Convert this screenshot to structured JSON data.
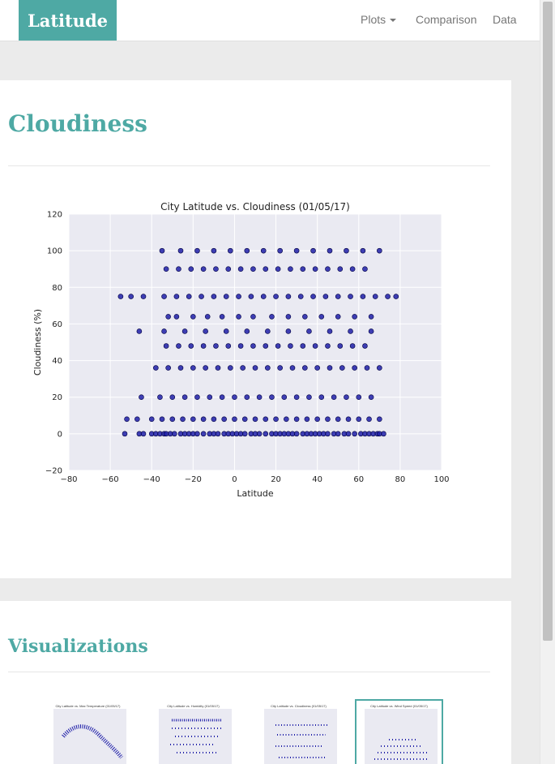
{
  "navbar": {
    "brand": "Latitude",
    "links": {
      "plots": "Plots",
      "comparison": "Comparison",
      "data": "Data"
    }
  },
  "cloudiness_section": {
    "heading": "Cloudiness"
  },
  "chart_data": {
    "type": "scatter",
    "title": "City Latitude vs. Cloudiness (01/05/17)",
    "xlabel": "Latitude",
    "ylabel": "Cloudiness (%)",
    "xlim": [
      -80,
      100
    ],
    "ylim": [
      -20,
      120
    ],
    "xticks": [
      -80,
      -60,
      -40,
      -20,
      0,
      20,
      40,
      60,
      80,
      100
    ],
    "yticks": [
      -20,
      0,
      20,
      40,
      60,
      80,
      100,
      120
    ],
    "grid": true,
    "marker_color": "#1f1fa8",
    "background_color": "#eaeaf2",
    "x": [
      -53,
      -46,
      -44,
      -40,
      -38,
      -36,
      -34,
      -33,
      -31,
      -29,
      -26,
      -24,
      -22,
      -20,
      -18,
      -15,
      -12,
      -10,
      -8,
      -5,
      -3,
      -1,
      1,
      3,
      5,
      8,
      10,
      12,
      15,
      18,
      20,
      22,
      24,
      26,
      28,
      30,
      33,
      35,
      37,
      39,
      41,
      43,
      45,
      48,
      50,
      53,
      55,
      58,
      61,
      63,
      65,
      67,
      69,
      70,
      72,
      -52,
      -47,
      -40,
      -35,
      -30,
      -25,
      -20,
      -15,
      -10,
      -5,
      0,
      5,
      10,
      15,
      20,
      25,
      30,
      35,
      40,
      45,
      50,
      55,
      60,
      65,
      70,
      -45,
      -36,
      -30,
      -24,
      -18,
      -12,
      -6,
      0,
      6,
      12,
      18,
      24,
      30,
      36,
      42,
      48,
      54,
      60,
      66,
      -38,
      -32,
      -26,
      -20,
      -14,
      -8,
      -2,
      4,
      10,
      16,
      22,
      28,
      34,
      40,
      46,
      52,
      58,
      64,
      70,
      -33,
      -27,
      -21,
      -15,
      -9,
      -3,
      3,
      9,
      15,
      21,
      27,
      33,
      39,
      45,
      51,
      57,
      63,
      -55,
      -50,
      -44,
      -34,
      -28,
      -22,
      -16,
      -10,
      -4,
      2,
      8,
      14,
      20,
      26,
      32,
      38,
      44,
      50,
      56,
      62,
      68,
      74,
      78,
      -33,
      -27,
      -21,
      -15,
      -9,
      -3,
      3,
      9,
      15,
      21,
      27,
      33,
      39,
      45,
      51,
      57,
      63,
      -35,
      -26,
      -18,
      -10,
      -2,
      6,
      14,
      22,
      30,
      38,
      46,
      54,
      62,
      70,
      -32,
      -28,
      -20,
      -13,
      -6,
      2,
      9,
      18,
      26,
      34,
      42,
      50,
      58,
      66,
      -46,
      -34,
      -24,
      -14,
      -4,
      6,
      16,
      26,
      36,
      46,
      56,
      66
    ],
    "y": [
      0,
      0,
      0,
      0,
      0,
      0,
      0,
      0,
      0,
      0,
      0,
      0,
      0,
      0,
      0,
      0,
      0,
      0,
      0,
      0,
      0,
      0,
      0,
      0,
      0,
      0,
      0,
      0,
      0,
      0,
      0,
      0,
      0,
      0,
      0,
      0,
      0,
      0,
      0,
      0,
      0,
      0,
      0,
      0,
      0,
      0,
      0,
      0,
      0,
      0,
      0,
      0,
      0,
      0,
      0,
      8,
      8,
      8,
      8,
      8,
      8,
      8,
      8,
      8,
      8,
      8,
      8,
      8,
      8,
      8,
      8,
      8,
      8,
      8,
      8,
      8,
      8,
      8,
      8,
      8,
      20,
      20,
      20,
      20,
      20,
      20,
      20,
      20,
      20,
      20,
      20,
      20,
      20,
      20,
      20,
      20,
      20,
      20,
      20,
      36,
      36,
      36,
      36,
      36,
      36,
      36,
      36,
      36,
      36,
      36,
      36,
      36,
      36,
      36,
      36,
      36,
      36,
      36,
      48,
      48,
      48,
      48,
      48,
      48,
      48,
      48,
      48,
      48,
      48,
      48,
      48,
      48,
      48,
      48,
      48,
      75,
      75,
      75,
      75,
      75,
      75,
      75,
      75,
      75,
      75,
      75,
      75,
      75,
      75,
      75,
      75,
      75,
      75,
      75,
      75,
      75,
      75,
      75,
      90,
      90,
      90,
      90,
      90,
      90,
      90,
      90,
      90,
      90,
      90,
      90,
      90,
      90,
      90,
      90,
      90,
      100,
      100,
      100,
      100,
      100,
      100,
      100,
      100,
      100,
      100,
      100,
      100,
      100,
      100,
      64,
      64,
      64,
      64,
      64,
      64,
      64,
      64,
      64,
      64,
      64,
      64,
      64,
      64,
      56,
      56,
      56,
      56,
      56,
      56,
      56,
      56,
      56,
      56,
      56,
      56
    ]
  },
  "visualizations_section": {
    "heading": "Visualizations",
    "thumbnails": [
      {
        "title": "City Latitude vs. Max Temperature (01/05/17)",
        "icon": "temperature-plot-thumbnail"
      },
      {
        "title": "City Latitude vs. Humidity (01/05/17)",
        "icon": "humidity-plot-thumbnail"
      },
      {
        "title": "City Latitude vs. Cloudiness (01/05/17)",
        "icon": "cloudiness-plot-thumbnail"
      },
      {
        "title": "City Latitude vs. Wind Speed (01/05/17)",
        "icon": "wind-speed-plot-thumbnail"
      }
    ]
  },
  "colors": {
    "accent": "#4ea9a4",
    "page_background": "#ebebeb"
  }
}
